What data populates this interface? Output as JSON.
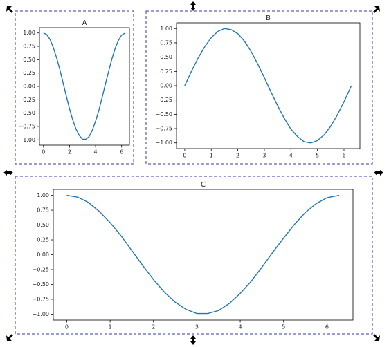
{
  "chart_data": [
    {
      "type": "line",
      "title": "A",
      "color": "#1f77b4",
      "x": [
        0,
        0.25,
        0.5,
        0.75,
        1,
        1.25,
        1.5,
        1.75,
        2,
        2.25,
        2.5,
        2.75,
        3,
        3.25,
        3.5,
        3.75,
        4,
        4.25,
        4.5,
        4.75,
        5,
        5.25,
        5.5,
        5.75,
        6,
        6.28
      ],
      "values": [
        1.0,
        0.97,
        0.88,
        0.73,
        0.54,
        0.32,
        0.07,
        -0.18,
        -0.42,
        -0.63,
        -0.8,
        -0.92,
        -0.99,
        -0.99,
        -0.94,
        -0.82,
        -0.65,
        -0.45,
        -0.21,
        0.04,
        0.28,
        0.51,
        0.71,
        0.86,
        0.96,
        1.0
      ],
      "xlim": [
        -0.31,
        6.6
      ],
      "ylim": [
        -1.1,
        1.1
      ],
      "xticks": [
        0,
        2,
        4,
        6
      ],
      "yticks": [
        {
          "value": 1,
          "label": "1.00"
        },
        {
          "value": 0.75,
          "label": "0.75"
        },
        {
          "value": 0.5,
          "label": "0.50"
        },
        {
          "value": 0.25,
          "label": "0.25"
        },
        {
          "value": 0,
          "label": "0.00"
        },
        {
          "value": -0.25,
          "label": "−0.25"
        },
        {
          "value": -0.5,
          "label": "−0.50"
        },
        {
          "value": -0.75,
          "label": "−0.75"
        },
        {
          "value": -1,
          "label": "−1.00"
        }
      ]
    },
    {
      "type": "line",
      "title": "B",
      "color": "#1f77b4",
      "x": [
        0,
        0.25,
        0.5,
        0.75,
        1,
        1.25,
        1.5,
        1.75,
        2,
        2.25,
        2.5,
        2.75,
        3,
        3.25,
        3.5,
        3.75,
        4,
        4.25,
        4.5,
        4.75,
        5,
        5.25,
        5.5,
        5.75,
        6,
        6.28
      ],
      "values": [
        0.0,
        0.25,
        0.48,
        0.68,
        0.84,
        0.95,
        1.0,
        0.98,
        0.91,
        0.78,
        0.6,
        0.38,
        0.14,
        -0.11,
        -0.35,
        -0.57,
        -0.76,
        -0.89,
        -0.98,
        -1.0,
        -0.96,
        -0.86,
        -0.71,
        -0.51,
        -0.28,
        0.0
      ],
      "xlim": [
        -0.31,
        6.6
      ],
      "ylim": [
        -1.1,
        1.1
      ],
      "xticks": [
        0,
        1,
        2,
        3,
        4,
        5,
        6
      ],
      "yticks": [
        {
          "value": 1,
          "label": "1.00"
        },
        {
          "value": 0.75,
          "label": "0.75"
        },
        {
          "value": 0.5,
          "label": "0.50"
        },
        {
          "value": 0.25,
          "label": "0.25"
        },
        {
          "value": 0,
          "label": "0.00"
        },
        {
          "value": -0.25,
          "label": "−0.25"
        },
        {
          "value": -0.5,
          "label": "−0.50"
        },
        {
          "value": -0.75,
          "label": "−0.75"
        },
        {
          "value": -1,
          "label": "−1.00"
        }
      ]
    },
    {
      "type": "line",
      "title": "C",
      "color": "#1f77b4",
      "x": [
        0,
        0.25,
        0.5,
        0.75,
        1,
        1.25,
        1.5,
        1.75,
        2,
        2.25,
        2.5,
        2.75,
        3,
        3.25,
        3.5,
        3.75,
        4,
        4.25,
        4.5,
        4.75,
        5,
        5.25,
        5.5,
        5.75,
        6,
        6.28
      ],
      "values": [
        1.0,
        0.97,
        0.88,
        0.73,
        0.54,
        0.32,
        0.07,
        -0.18,
        -0.42,
        -0.63,
        -0.8,
        -0.92,
        -0.99,
        -0.99,
        -0.94,
        -0.82,
        -0.65,
        -0.45,
        -0.21,
        0.04,
        0.28,
        0.51,
        0.71,
        0.86,
        0.96,
        1.0
      ],
      "xlim": [
        -0.31,
        6.6
      ],
      "ylim": [
        -1.1,
        1.1
      ],
      "xticks": [
        0,
        1,
        2,
        3,
        4,
        5,
        6
      ],
      "yticks": [
        {
          "value": 1,
          "label": "1.00"
        },
        {
          "value": 0.75,
          "label": "0.75"
        },
        {
          "value": 0.5,
          "label": "0.50"
        },
        {
          "value": 0.25,
          "label": "0.25"
        },
        {
          "value": 0,
          "label": "0.00"
        },
        {
          "value": -0.25,
          "label": "−0.25"
        },
        {
          "value": -0.5,
          "label": "−0.50"
        },
        {
          "value": -0.75,
          "label": "−0.75"
        },
        {
          "value": -1,
          "label": "−1.00"
        }
      ]
    }
  ]
}
